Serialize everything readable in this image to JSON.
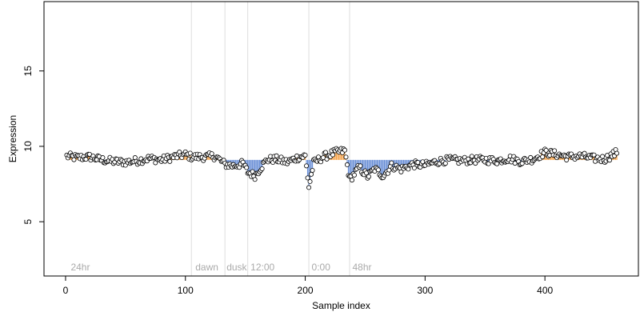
{
  "chart_data": {
    "type": "scatter",
    "title": "",
    "xlabel": "Sample index",
    "ylabel": "Expression",
    "xlim": [
      -18,
      478
    ],
    "ylim": [
      1.4,
      19.6
    ],
    "xticks": [
      0,
      100,
      200,
      300,
      400
    ],
    "yticks": [
      5,
      10,
      15
    ],
    "grid": false,
    "vlines": [
      105,
      133,
      152,
      203,
      237
    ],
    "annotations": [
      {
        "x": 3,
        "label": "24hr"
      },
      {
        "x": 107,
        "label": "dawn"
      },
      {
        "x": 133,
        "label": "dusk"
      },
      {
        "x": 153,
        "label": "12:00"
      },
      {
        "x": 204,
        "label": "0:00"
      },
      {
        "x": 238,
        "label": "48hr"
      }
    ],
    "baseline": 9.1,
    "above_color": "#f5a34a",
    "below_color": "#6a8fd6",
    "point_fill": "#ffffff",
    "point_stroke": "#000000",
    "control_points": [
      [
        0,
        9.35
      ],
      [
        10,
        9.25
      ],
      [
        20,
        9.3
      ],
      [
        30,
        9.1
      ],
      [
        40,
        9.0
      ],
      [
        50,
        8.95
      ],
      [
        60,
        9.05
      ],
      [
        70,
        9.2
      ],
      [
        80,
        9.1
      ],
      [
        90,
        9.3
      ],
      [
        100,
        9.45
      ],
      [
        105,
        9.3
      ],
      [
        115,
        9.3
      ],
      [
        125,
        9.35
      ],
      [
        133,
        8.8
      ],
      [
        140,
        8.7
      ],
      [
        148,
        8.85
      ],
      [
        152,
        8.3
      ],
      [
        158,
        8.05
      ],
      [
        163,
        8.6
      ],
      [
        168,
        9.1
      ],
      [
        175,
        9.15
      ],
      [
        185,
        8.95
      ],
      [
        195,
        9.3
      ],
      [
        200,
        9.35
      ],
      [
        203,
        7.3
      ],
      [
        207,
        8.9
      ],
      [
        215,
        9.3
      ],
      [
        225,
        9.6
      ],
      [
        233,
        9.7
      ],
      [
        237,
        7.8
      ],
      [
        245,
        8.6
      ],
      [
        252,
        8.0
      ],
      [
        258,
        8.5
      ],
      [
        265,
        8.05
      ],
      [
        272,
        8.7
      ],
      [
        280,
        8.5
      ],
      [
        290,
        8.8
      ],
      [
        300,
        8.75
      ],
      [
        310,
        9.0
      ],
      [
        320,
        9.1
      ],
      [
        330,
        9.05
      ],
      [
        340,
        9.1
      ],
      [
        350,
        9.1
      ],
      [
        360,
        9.05
      ],
      [
        370,
        9.2
      ],
      [
        380,
        9.0
      ],
      [
        390,
        9.15
      ],
      [
        400,
        9.6
      ],
      [
        410,
        9.45
      ],
      [
        420,
        9.3
      ],
      [
        430,
        9.35
      ],
      [
        440,
        9.2
      ],
      [
        450,
        9.15
      ],
      [
        460,
        9.6
      ]
    ],
    "n_points": 460,
    "noise_amplitude": 0.25
  }
}
